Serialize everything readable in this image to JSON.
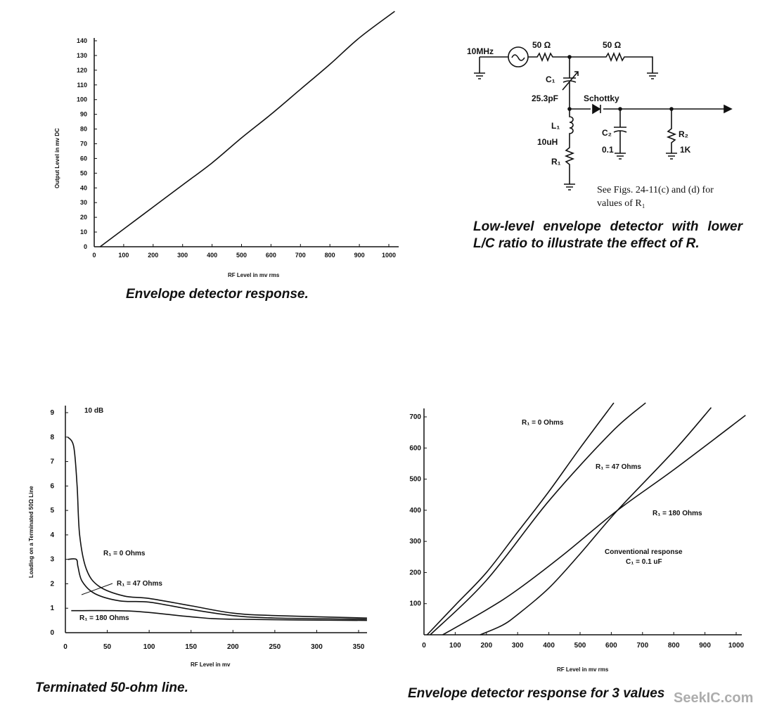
{
  "chart_data": [
    {
      "type": "line",
      "title": "Envelope detector response.",
      "xlabel": "RF Level in mv rms",
      "ylabel": "Output Level in mv DC",
      "xlim": [
        0,
        1000
      ],
      "ylim": [
        0,
        140
      ],
      "xticks": [
        0,
        100,
        200,
        300,
        400,
        500,
        600,
        700,
        800,
        900,
        1000
      ],
      "yticks": [
        0,
        10,
        20,
        30,
        40,
        50,
        60,
        70,
        80,
        90,
        100,
        110,
        120,
        130,
        140
      ],
      "grid": false,
      "series": [
        {
          "name": "response",
          "x": [
            20,
            100,
            200,
            300,
            400,
            500,
            600,
            700,
            800,
            900,
            1020
          ],
          "y": [
            0,
            12,
            27,
            42,
            57,
            74,
            90,
            107,
            124,
            142,
            160
          ]
        }
      ]
    },
    {
      "type": "line",
      "title": "Terminated 50-ohm line.",
      "xlabel": "RF Level in mv",
      "ylabel": "Loading on a Terminated 50Ω Line",
      "xlim": [
        0,
        350
      ],
      "ylim": [
        0,
        9
      ],
      "xticks": [
        0,
        50,
        100,
        150,
        200,
        250,
        300,
        350
      ],
      "yticks": [
        0,
        1,
        2,
        3,
        4,
        5,
        6,
        7,
        8,
        9
      ],
      "annotations": [
        "10 dB"
      ],
      "grid": false,
      "series": [
        {
          "name": "R1 = 0 Ohms",
          "x": [
            3,
            10,
            14,
            17,
            25,
            40,
            70,
            100,
            150,
            200,
            250,
            360
          ],
          "y": [
            8,
            7.6,
            6,
            4,
            2.6,
            1.9,
            1.5,
            1.4,
            1.1,
            0.8,
            0.7,
            0.6
          ]
        },
        {
          "name": "R1 = 47 Ohms",
          "x": [
            3,
            13,
            15,
            20,
            35,
            65,
            100,
            150,
            200,
            250,
            360
          ],
          "y": [
            3,
            3,
            2.7,
            2.1,
            1.6,
            1.3,
            1.25,
            0.95,
            0.7,
            0.6,
            0.55
          ]
        },
        {
          "name": "R1 = 180 Ohms",
          "x": [
            7,
            80,
            150,
            200,
            360
          ],
          "y": [
            0.9,
            0.88,
            0.65,
            0.55,
            0.5
          ]
        }
      ]
    },
    {
      "type": "line",
      "title": "Envelope detector response for 3 values",
      "xlabel": "RF Level in mv rms",
      "ylabel": "",
      "xlim": [
        0,
        1000
      ],
      "ylim": [
        0,
        700
      ],
      "xticks": [
        0,
        100,
        200,
        300,
        400,
        500,
        600,
        700,
        800,
        900,
        1000
      ],
      "yticks": [
        100,
        200,
        300,
        400,
        500,
        600,
        700
      ],
      "grid": false,
      "series": [
        {
          "name": "R1 = 0 Ohms",
          "x": [
            10,
            100,
            200,
            300,
            400,
            500,
            608
          ],
          "y": [
            0,
            95,
            200,
            330,
            460,
            600,
            745
          ]
        },
        {
          "name": "R1 = 47 Ohms",
          "x": [
            20,
            200,
            400,
            600,
            710
          ],
          "y": [
            0,
            175,
            430,
            650,
            745
          ]
        },
        {
          "name": "Conventional response C1 = 0.1 uF",
          "x": [
            60,
            200,
            300,
            450,
            620,
            800,
            1030
          ],
          "y": [
            0,
            80,
            145,
            260,
            400,
            530,
            705
          ]
        },
        {
          "name": "R1 = 180 Ohms",
          "x": [
            180,
            250,
            300,
            400,
            500,
            620,
            800,
            920
          ],
          "y": [
            0,
            30,
            65,
            150,
            260,
            400,
            590,
            730
          ]
        }
      ]
    }
  ],
  "labels": {
    "c1_r0": "R₁ = 0 Ohms",
    "c1_r47": "R₁ = 47 Ohms",
    "c1_r180": "R₁ = 180 Ohms",
    "c2_r0": "R₁ = 0 Ohms",
    "c2_r47": "R₁ = 47 Ohms",
    "c2_r180": "R₁ = 180 Ohms",
    "c2_conv1": "Conventional response",
    "c2_conv2": "C₁ = 0.1 uF"
  },
  "circuit": {
    "source": "10MHz",
    "r_in": "50 Ω",
    "r_load": "50 Ω",
    "c1": "C₁",
    "c1_val": "25.3pF",
    "diode": "Schottky",
    "l1": "L₁",
    "l1_val": "10uH",
    "r1": "R₁",
    "c2": "C₂",
    "c2_val": "0.1",
    "r2": "R₂",
    "r2_val": "1K",
    "note_line1": "See Figs. 24-11(c) and (d) for",
    "note_line2": "values of R₁",
    "caption": "Low-level envelope detector with lower L/C ratio to illustrate the effect of R."
  },
  "captions": {
    "chart1": "Envelope detector response.",
    "chart2": "Terminated 50-ohm line.",
    "chart3": "Envelope detector response for 3 values"
  },
  "watermark": "SeekIC.com"
}
